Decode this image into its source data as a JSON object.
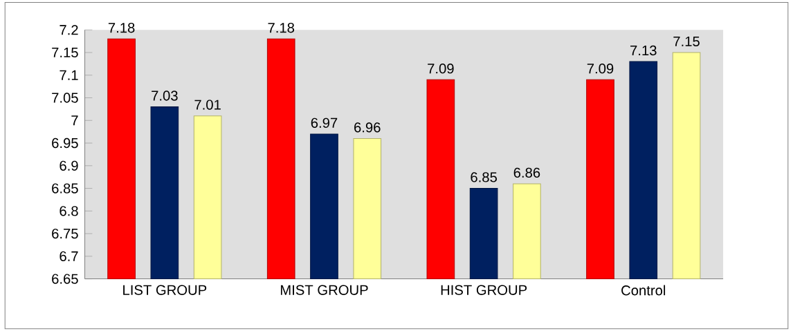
{
  "chart_data": {
    "type": "bar",
    "categories": [
      "LIST GROUP",
      "MIST GROUP",
      "HIST GROUP",
      "Control"
    ],
    "series": [
      {
        "color": "#ff0000",
        "values": [
          7.18,
          7.18,
          7.09,
          7.09
        ]
      },
      {
        "color": "#002060",
        "values": [
          7.03,
          6.97,
          6.85,
          7.13
        ]
      },
      {
        "color": "#ffff99",
        "values": [
          7.01,
          6.96,
          6.86,
          7.15
        ]
      }
    ],
    "ylim": [
      6.65,
      7.2
    ],
    "yticks": [
      6.65,
      6.7,
      6.75,
      6.8,
      6.85,
      6.9,
      6.95,
      7,
      7.05,
      7.1,
      7.15,
      7.2
    ],
    "data_labels": true,
    "grid": false
  }
}
